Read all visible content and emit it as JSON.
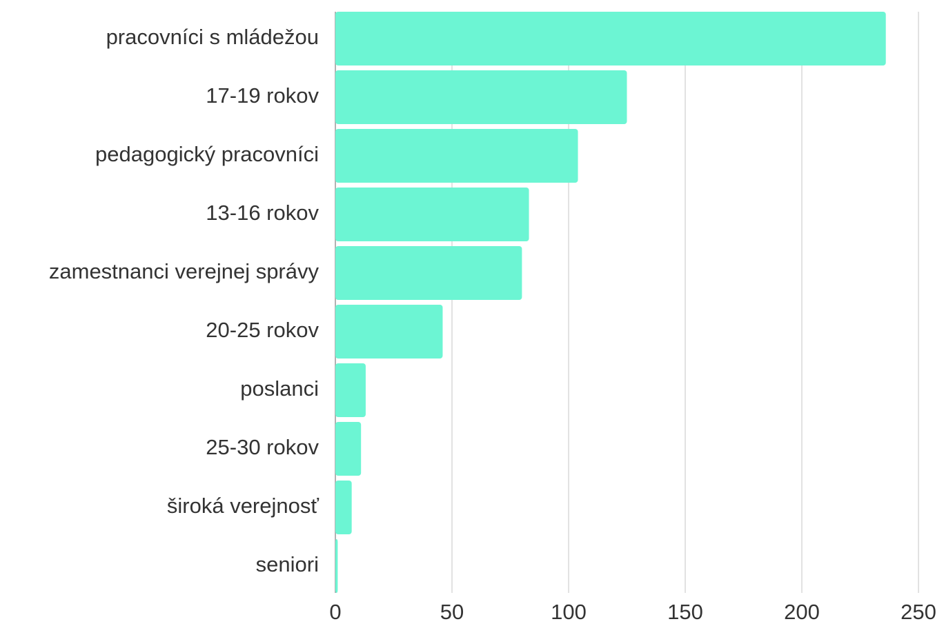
{
  "chart_data": {
    "type": "bar",
    "orientation": "horizontal",
    "title": "",
    "xlabel": "",
    "ylabel": "",
    "categories": [
      "pracovníci s mládežou",
      "17-19 rokov",
      "pedagogický pracovníci",
      "13-16 rokov",
      "zamestnanci verejnej správy",
      "20-25 rokov",
      "poslanci",
      "25-30 rokov",
      "široká verejnosť",
      "seniori"
    ],
    "values": [
      236,
      125,
      104,
      83,
      80,
      46,
      13,
      11,
      7,
      1
    ],
    "xlim": [
      0,
      250
    ],
    "xticks": [
      0,
      50,
      100,
      150,
      200,
      250
    ],
    "grid": "vertical",
    "legend": "none",
    "bar_color": "#6cf5d3"
  }
}
